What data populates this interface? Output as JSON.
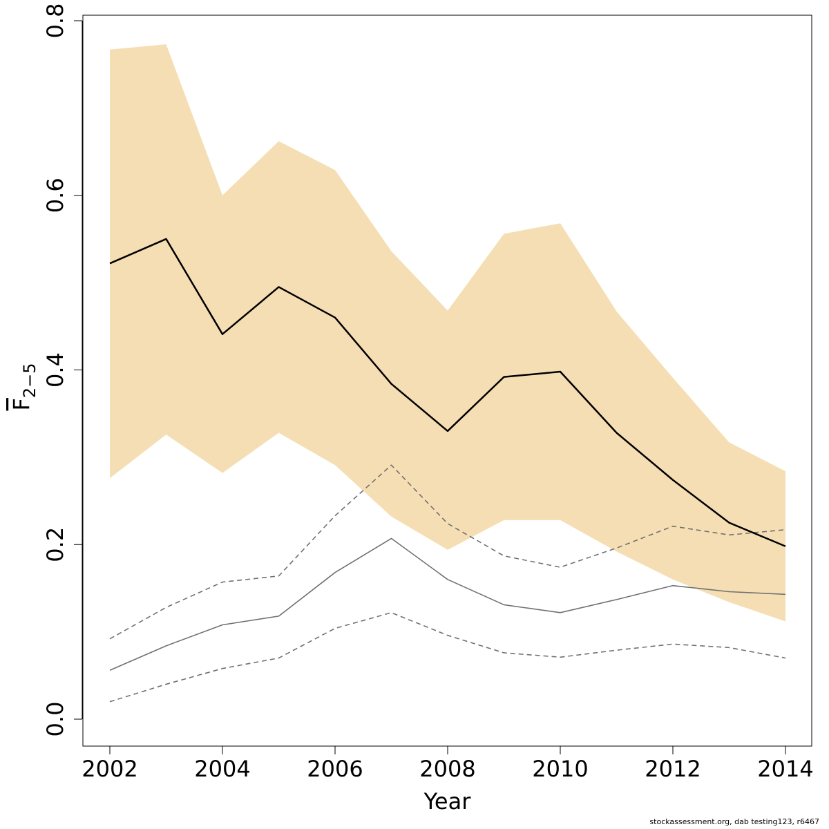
{
  "chart_data": {
    "type": "line",
    "title": "",
    "xlabel": "Year",
    "ylabel": "F",
    "ylabel_subscript": "2−5",
    "xlim": [
      2002,
      2014
    ],
    "ylim": [
      0.0,
      0.8
    ],
    "x_ticks": [
      2002,
      2004,
      2006,
      2008,
      2010,
      2012,
      2014
    ],
    "y_ticks": [
      "0.0",
      "0.2",
      "0.4",
      "0.6",
      "0.8"
    ],
    "grid": false,
    "x": [
      2002,
      2003,
      2004,
      2005,
      2006,
      2007,
      2008,
      2009,
      2010,
      2011,
      2012,
      2013,
      2014
    ],
    "band": {
      "color": "#f5deb3",
      "lower": [
        0.276,
        0.326,
        0.282,
        0.328,
        0.291,
        0.232,
        0.194,
        0.228,
        0.228,
        0.192,
        0.16,
        0.134,
        0.112
      ],
      "upper": [
        0.767,
        0.773,
        0.6,
        0.662,
        0.629,
        0.536,
        0.468,
        0.556,
        0.568,
        0.467,
        0.391,
        0.317,
        0.284
      ]
    },
    "series": [
      {
        "color": "#000000",
        "style": "solid",
        "width": 2.5,
        "values": [
          0.522,
          0.55,
          0.441,
          0.495,
          0.46,
          0.384,
          0.33,
          0.392,
          0.398,
          0.328,
          0.274,
          0.225,
          0.198
        ]
      },
      {
        "color": "#707070",
        "style": "solid",
        "width": 1.6,
        "values": [
          0.056,
          0.084,
          0.108,
          0.118,
          0.168,
          0.207,
          0.16,
          0.131,
          0.122,
          0.137,
          0.153,
          0.146,
          0.143
        ]
      },
      {
        "color": "#707070",
        "style": "dashed",
        "width": 1.6,
        "values": [
          0.092,
          0.128,
          0.157,
          0.164,
          0.233,
          0.291,
          0.224,
          0.187,
          0.174,
          0.196,
          0.221,
          0.211,
          0.217
        ]
      },
      {
        "color": "#707070",
        "style": "dashed",
        "width": 1.6,
        "values": [
          0.02,
          0.04,
          0.058,
          0.07,
          0.104,
          0.122,
          0.096,
          0.076,
          0.071,
          0.079,
          0.086,
          0.082,
          0.07
        ]
      }
    ]
  },
  "footer": {
    "credit": "stockassessment.org, dab testing123, r6467"
  }
}
